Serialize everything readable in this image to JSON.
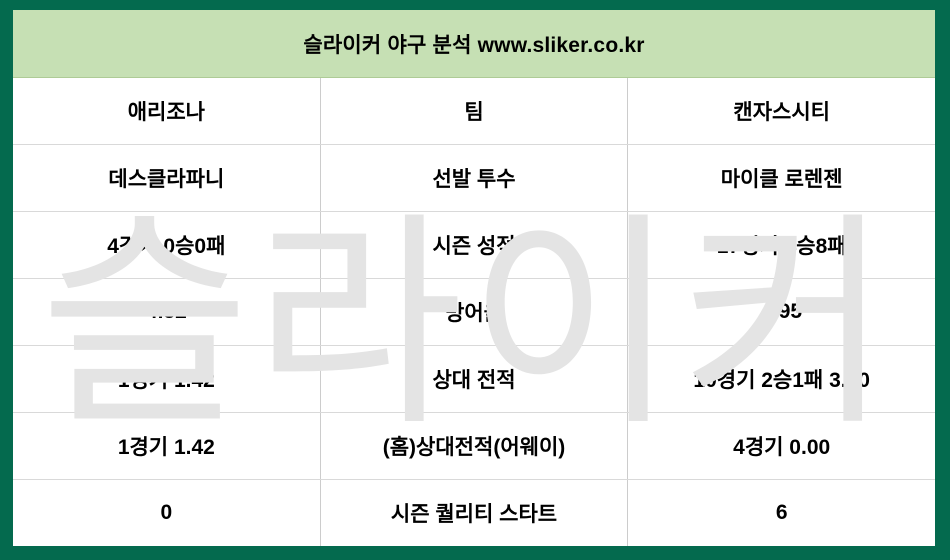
{
  "header": {
    "title": "슬라이커 야구 분석 www.sliker.co.kr"
  },
  "watermark": {
    "text": "슬라이커"
  },
  "colors": {
    "frame_green": "#046A4E",
    "header_green": "#C6E0B4",
    "cell_bg": "#FFFFFF",
    "grid_line": "#D9D9D9",
    "text": "#000000",
    "watermark_gray": "#E4E4E4"
  },
  "table": {
    "rows": [
      {
        "left": "애리조나",
        "center": "팀",
        "right": "캔자스시티"
      },
      {
        "left": "데스클라파니",
        "center": "선발 투수",
        "right": "마이클 로렌젠"
      },
      {
        "left": "4경기 0승0패",
        "center": "시즌 성적",
        "right": "17경기 4승8패"
      },
      {
        "left": "4.82",
        "center": "방어율",
        "right": "4.95"
      },
      {
        "left": "1경기 1.42",
        "center": "상대 전적",
        "right": "10경기 2승1패 3.00"
      },
      {
        "left": "1경기 1.42",
        "center": "(홈)상대전적(어웨이)",
        "right": "4경기 0.00"
      },
      {
        "left": "0",
        "center": "시즌 퀄리티 스타트",
        "right": "6"
      }
    ]
  }
}
